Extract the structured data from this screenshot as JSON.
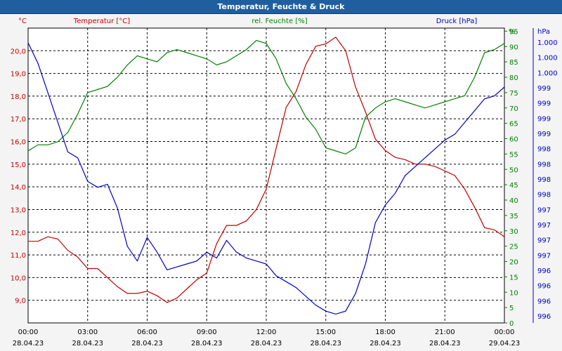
{
  "window": {
    "title": "Temperatur, Feuchte & Druck"
  },
  "colors": {
    "temperature": "#c00000",
    "humidity": "#008000",
    "pressure": "#0000c0",
    "grid": "#000000",
    "plot_bg": "#ffffff",
    "axis_text": "#000000"
  },
  "chart_data": {
    "type": "line",
    "title": "Temperatur, Feuchte & Druck",
    "x_ticks": [
      {
        "time": "00:00",
        "date": "28.04.23"
      },
      {
        "time": "03:00",
        "date": "28.04.23"
      },
      {
        "time": "06:00",
        "date": "28.04.23"
      },
      {
        "time": "09:00",
        "date": "28.04.23"
      },
      {
        "time": "12:00",
        "date": "28.04.23"
      },
      {
        "time": "15:00",
        "date": "28.04.23"
      },
      {
        "time": "18:00",
        "date": "28.04.23"
      },
      {
        "time": "21:00",
        "date": "28.04.23"
      },
      {
        "time": "00:00",
        "date": "29.04.23"
      }
    ],
    "xlim": [
      0,
      24
    ],
    "grid": true,
    "axes": {
      "left": {
        "label": "Temperatur [°C]",
        "unit": "°C",
        "ylim": [
          8.0,
          21.0
        ],
        "tick_values": [
          9.0,
          10.0,
          11.0,
          12.0,
          13.0,
          14.0,
          15.0,
          16.0,
          17.0,
          18.0,
          19.0,
          20.0
        ],
        "tick_labels": [
          "9,0",
          "10,0",
          "11,0",
          "12,0",
          "13,0",
          "14,0",
          "15,0",
          "16,0",
          "17,0",
          "18,0",
          "19,0",
          "20,0"
        ]
      },
      "right1": {
        "label": "rel. Feuchte [%]",
        "unit": "%",
        "ylim": [
          0,
          96
        ],
        "tick_values": [
          0,
          5,
          10,
          15,
          20,
          25,
          30,
          35,
          40,
          45,
          50,
          55,
          60,
          65,
          70,
          75,
          80,
          85,
          90,
          95
        ],
        "tick_labels": [
          "0",
          "5",
          "10",
          "15",
          "20",
          "25",
          "30",
          "35",
          "40",
          "45",
          "50",
          "55",
          "60",
          "65",
          "70",
          "75",
          "80",
          "85",
          "90",
          "95"
        ]
      },
      "right2": {
        "label": "Druck [hPa]",
        "unit": "hPa",
        "tick_labels": [
          "996",
          "996",
          "996",
          "996",
          "997",
          "997",
          "997",
          "997",
          "998",
          "998",
          "998",
          "998",
          "999",
          "999",
          "999",
          "999",
          "1.000",
          "1.000",
          "1.000"
        ]
      }
    },
    "series": [
      {
        "name": "Temperatur [°C]",
        "axis": "left",
        "x": [
          0,
          0.5,
          1,
          1.5,
          2,
          2.5,
          3,
          3.5,
          4,
          4.5,
          5,
          5.5,
          6,
          6.5,
          7,
          7.5,
          8,
          8.5,
          9,
          9.5,
          10,
          10.5,
          11,
          11.5,
          12,
          12.5,
          13,
          13.5,
          14,
          14.5,
          15,
          15.5,
          16,
          16.5,
          17,
          17.5,
          18,
          18.5,
          19,
          19.5,
          20,
          20.5,
          21,
          21.5,
          22,
          22.5,
          23,
          23.5,
          24
        ],
        "y": [
          11.6,
          11.6,
          11.8,
          11.7,
          11.2,
          10.9,
          10.4,
          10.4,
          10.0,
          9.6,
          9.3,
          9.3,
          9.4,
          9.2,
          8.9,
          9.1,
          9.5,
          9.9,
          10.2,
          11.5,
          12.3,
          12.3,
          12.5,
          13.0,
          13.9,
          15.7,
          17.5,
          18.2,
          19.4,
          20.2,
          20.3,
          20.6,
          20.0,
          18.4,
          17.3,
          16.1,
          15.6,
          15.3,
          15.2,
          15.0,
          15.0,
          14.9,
          14.7,
          14.5,
          13.9,
          13.1,
          12.2,
          12.1,
          11.8
        ]
      },
      {
        "name": "rel. Feuchte [%]",
        "axis": "right1",
        "x": [
          0,
          0.5,
          1,
          1.5,
          2,
          2.5,
          3,
          3.5,
          4,
          4.5,
          5,
          5.5,
          6,
          6.5,
          7,
          7.5,
          8,
          8.5,
          9,
          9.5,
          10,
          10.5,
          11,
          11.5,
          12,
          12.5,
          13,
          13.5,
          14,
          14.5,
          15,
          15.5,
          16,
          16.5,
          17,
          17.5,
          18,
          18.5,
          19,
          19.5,
          20,
          20.5,
          21,
          21.5,
          22,
          22.5,
          23,
          23.5,
          24
        ],
        "y": [
          56,
          58,
          58,
          59,
          62,
          68,
          75,
          76,
          77,
          80,
          84,
          87,
          86,
          85,
          88,
          89,
          88,
          87,
          86,
          84,
          85,
          87,
          89,
          92,
          91,
          86,
          78,
          73,
          67,
          63,
          57,
          56,
          55,
          57,
          67,
          70,
          72,
          73,
          72,
          71,
          70,
          71,
          72,
          73,
          74,
          80,
          88,
          89,
          91
        ]
      },
      {
        "name": "Druck [hPa]",
        "axis": "right2",
        "x": [
          0,
          0.5,
          1,
          1.5,
          2,
          2.5,
          3,
          3.5,
          4,
          4.5,
          5,
          5.5,
          6,
          6.5,
          7,
          7.5,
          8,
          8.5,
          9,
          9.5,
          10,
          10.5,
          11,
          11.5,
          12,
          12.5,
          13,
          13.5,
          14,
          14.5,
          15,
          15.5,
          16,
          16.5,
          17,
          17.5,
          18,
          18.5,
          19,
          19.5,
          20,
          20.5,
          21,
          21.5,
          22,
          22.5,
          23,
          23.5,
          24
        ],
        "y_pixels_note": "",
        "y": [
          95,
          88,
          78,
          68,
          58,
          56,
          48,
          46,
          47,
          39,
          26,
          21,
          29,
          24,
          18,
          19,
          20,
          21,
          24,
          22,
          28,
          24,
          22,
          21,
          20,
          16,
          14,
          12,
          9,
          6,
          4,
          3,
          4,
          10,
          20,
          34,
          40,
          44,
          50,
          53,
          56,
          59,
          62,
          64,
          68,
          72,
          76,
          77,
          80
        ]
      }
    ]
  }
}
